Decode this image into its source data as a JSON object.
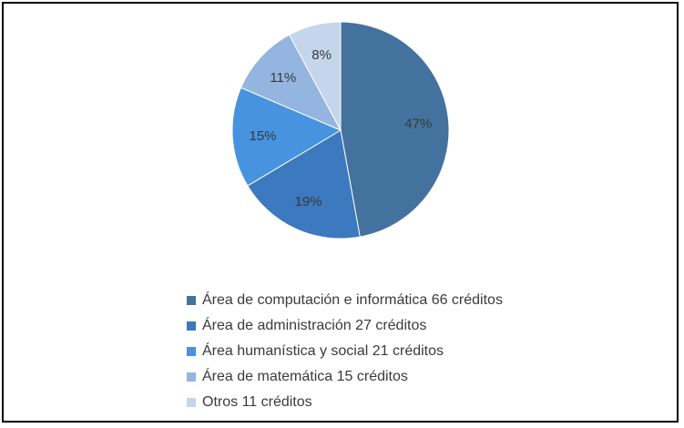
{
  "chart_data": {
    "type": "pie",
    "slices": [
      {
        "label": "Área de computación e informática 66 créditos",
        "value": 66,
        "percent_label": "47%",
        "color": "#44729e"
      },
      {
        "label": "Área de administración 27 créditos",
        "value": 27,
        "percent_label": "19%",
        "color": "#3c79be"
      },
      {
        "label": "Área humanística y social 21 créditos",
        "value": 21,
        "percent_label": "15%",
        "color": "#4793e0"
      },
      {
        "label": "Área de matemática 15 créditos",
        "value": 15,
        "percent_label": "11%",
        "color": "#93b5e0"
      },
      {
        "label": "Otros 11 créditos",
        "value": 11,
        "percent_label": "8%",
        "color": "#c5d5ec"
      }
    ],
    "legend_position": "bottom"
  }
}
